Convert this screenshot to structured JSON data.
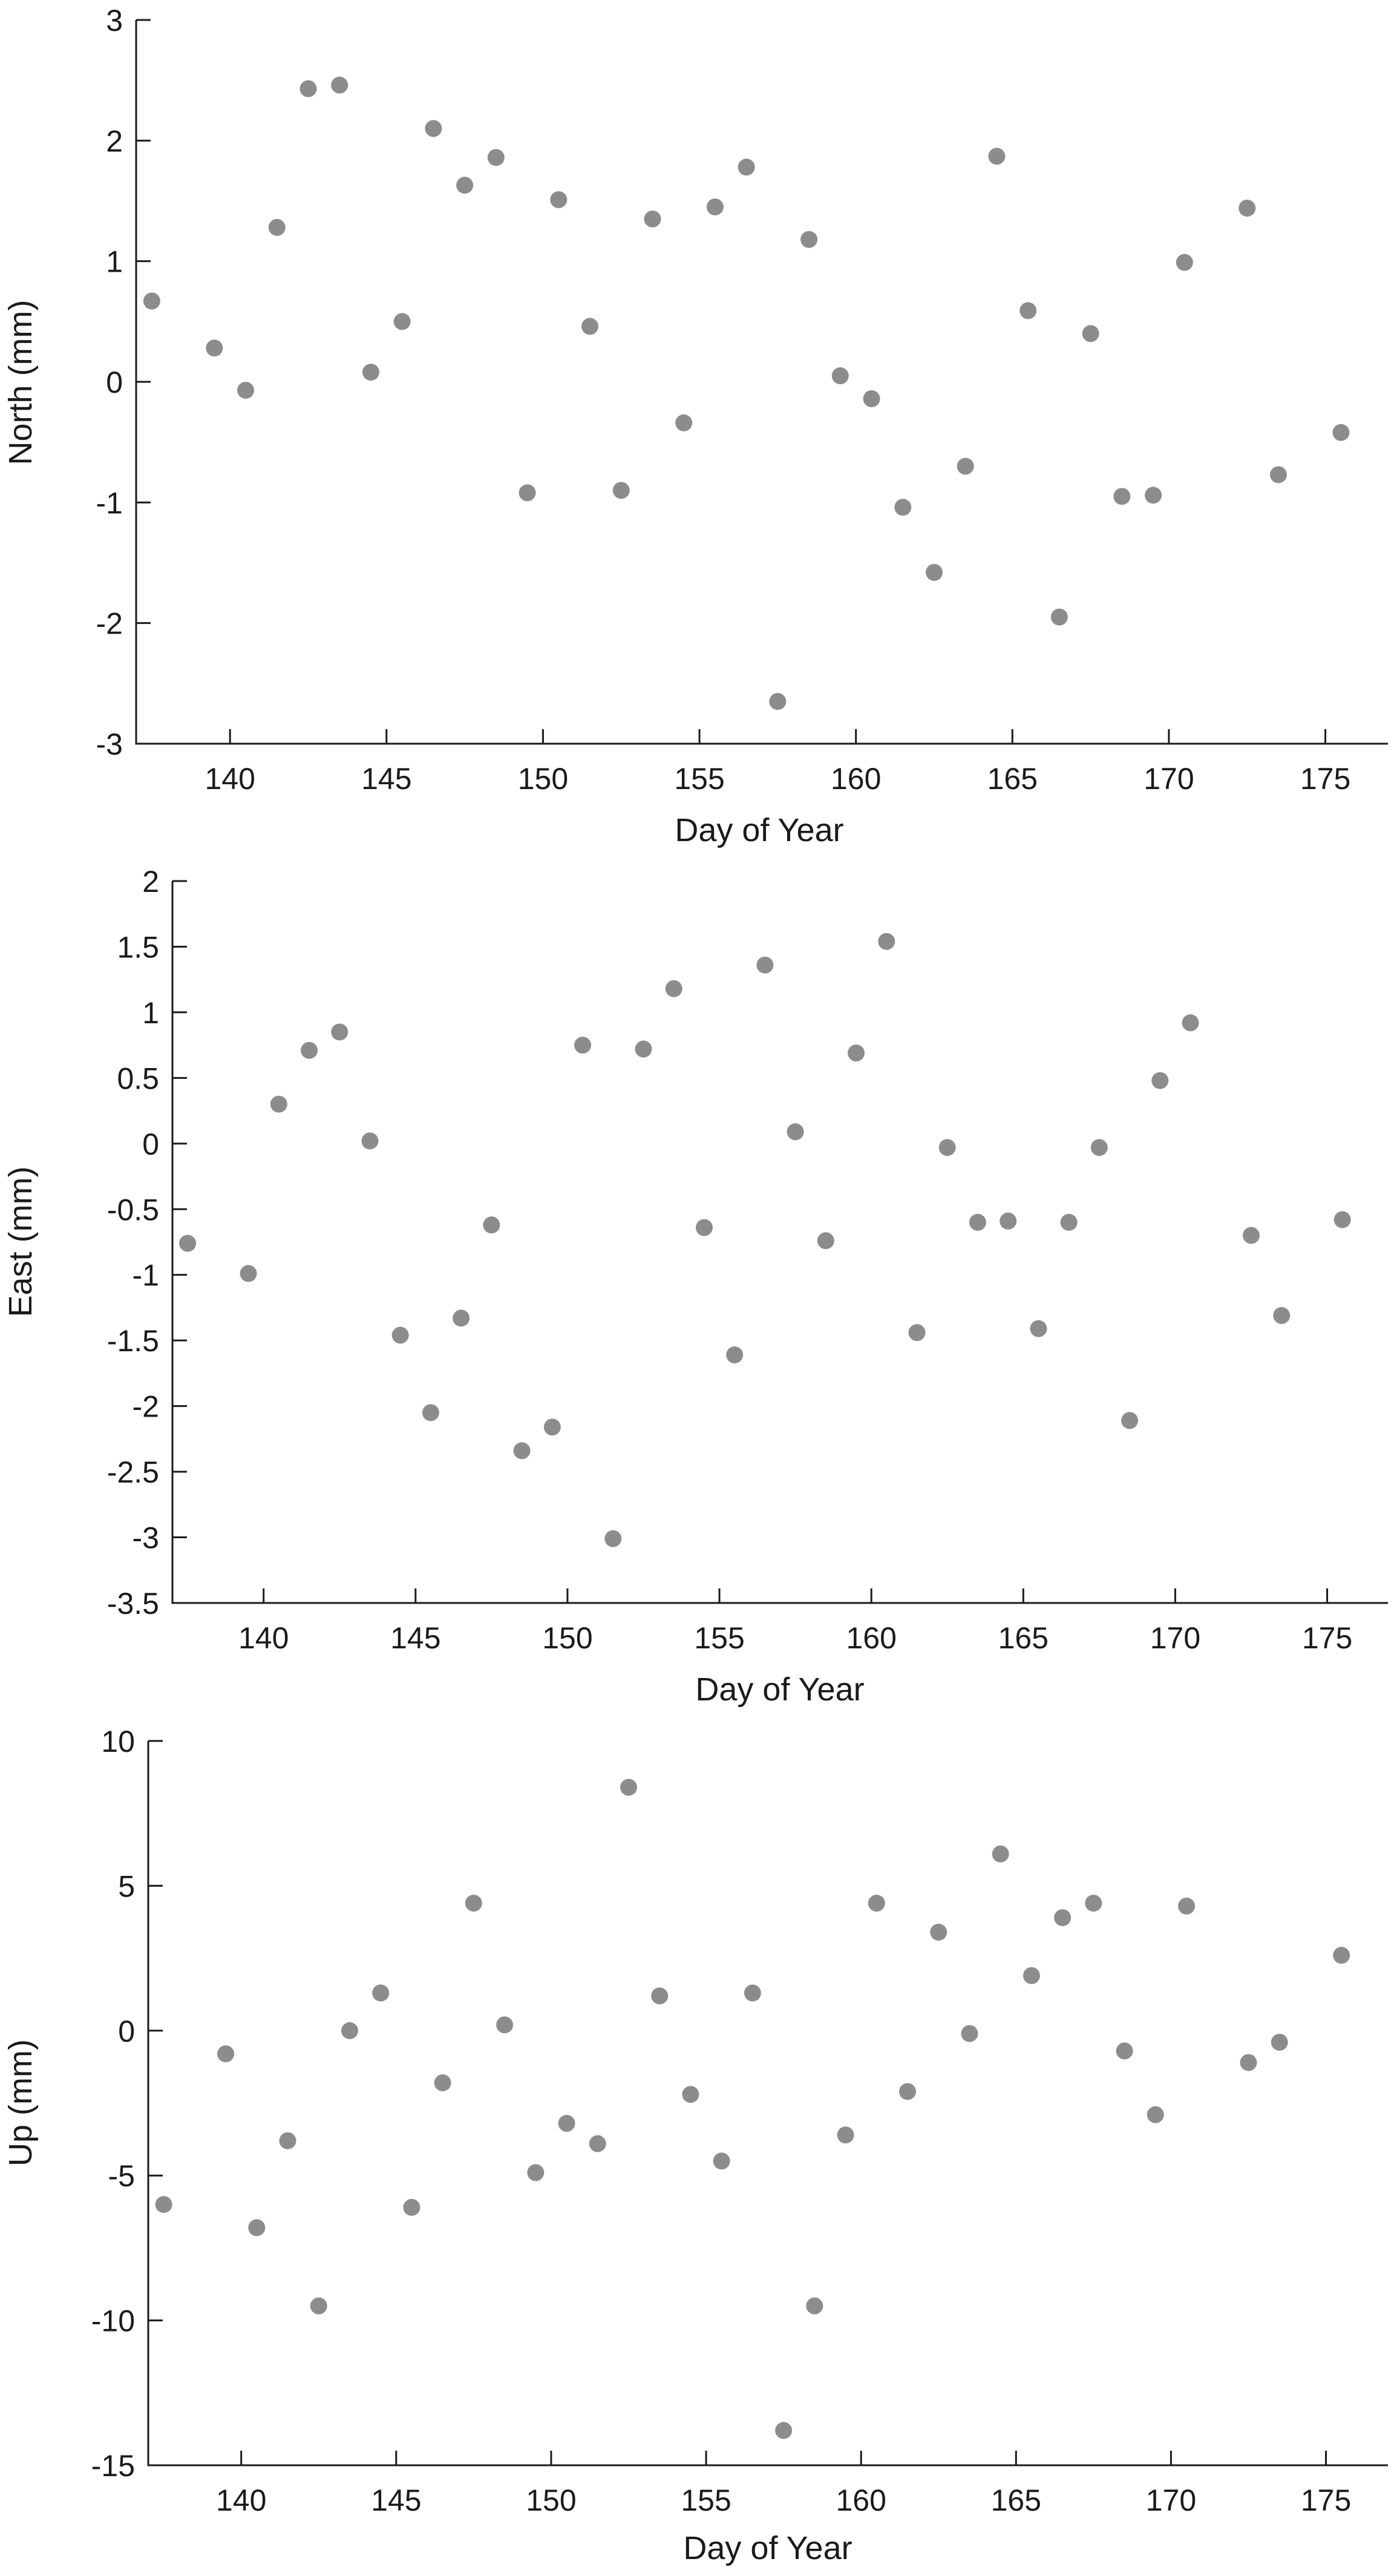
{
  "colors": {
    "point": "#8c8c8c",
    "axis": "#1a1a1a",
    "background": "#ffffff"
  },
  "chart_data": [
    {
      "type": "scatter",
      "title": "",
      "xlabel": "Day of Year",
      "ylabel": "North (mm)",
      "xlim": [
        137,
        177
      ],
      "ylim": [
        -3,
        3
      ],
      "xticks": [
        140,
        145,
        150,
        155,
        160,
        165,
        170,
        175
      ],
      "yticks": [
        -3,
        -2,
        -1,
        0,
        1,
        2,
        3
      ],
      "ytick_labels": [
        "-3",
        "-2",
        "-1",
        "0",
        "1",
        "2",
        "3"
      ],
      "grid": false,
      "legend": "none",
      "series": [
        {
          "x": [
            137.5,
            139.5,
            140.5,
            141.5,
            142.5,
            143.5,
            144.5,
            145.5,
            146.5,
            147.5,
            148.5,
            149.5,
            150.5,
            151.5,
            152.5,
            153.5,
            154.5,
            155.5,
            156.5,
            157.5,
            158.5,
            159.5,
            160.5,
            161.5,
            162.5,
            163.5,
            164.5,
            165.5,
            166.5,
            167.5,
            168.5,
            169.5,
            170.5,
            172.5,
            173.5,
            175.5
          ],
          "y": [
            0.67,
            0.28,
            -0.07,
            1.28,
            2.43,
            2.46,
            0.08,
            0.5,
            2.1,
            1.63,
            1.86,
            -0.92,
            1.51,
            0.46,
            -0.9,
            1.35,
            -0.34,
            1.45,
            1.78,
            -2.65,
            1.18,
            0.05,
            -0.14,
            -1.04,
            -1.58,
            -0.7,
            1.87,
            0.59,
            -1.95,
            0.4,
            -0.95,
            -0.94,
            0.99,
            1.44,
            -0.77,
            -0.42
          ]
        }
      ]
    },
    {
      "type": "scatter",
      "title": "",
      "xlabel": "Day of Year",
      "ylabel": "East (mm)",
      "xlim": [
        137,
        177
      ],
      "ylim": [
        -3.5,
        2
      ],
      "xticks": [
        140,
        145,
        150,
        155,
        160,
        165,
        170,
        175
      ],
      "yticks": [
        -3.5,
        -3,
        -2.5,
        -2,
        -1.5,
        -1,
        -0.5,
        0,
        0.5,
        1,
        1.5,
        2
      ],
      "ytick_labels": [
        "-3.5",
        "-3",
        "-2.5",
        "-2",
        "-1.5",
        "-1",
        "-0.5",
        "0",
        "0.5",
        "1",
        "1.5",
        "2"
      ],
      "grid": false,
      "legend": "none",
      "series": [
        {
          "x": [
            137.5,
            139.5,
            140.5,
            141.5,
            142.5,
            143.5,
            144.5,
            145.5,
            146.5,
            147.5,
            148.5,
            149.5,
            150.5,
            151.5,
            152.5,
            153.5,
            154.5,
            155.5,
            156.5,
            157.5,
            158.5,
            159.5,
            160.5,
            161.5,
            162.5,
            163.5,
            164.5,
            165.5,
            166.5,
            167.5,
            168.5,
            169.5,
            170.5,
            172.5,
            173.5,
            175.5
          ],
          "y": [
            -0.76,
            -0.99,
            0.3,
            0.71,
            0.85,
            0.02,
            -1.46,
            -2.05,
            -1.33,
            -0.62,
            -2.34,
            -2.16,
            0.75,
            -3.01,
            0.72,
            1.18,
            -0.64,
            -1.61,
            1.36,
            0.09,
            -0.74,
            0.69,
            1.54,
            -1.44,
            -0.03,
            -0.6,
            -0.59,
            -1.41,
            -0.6,
            -0.03,
            -2.11,
            0.48,
            0.92,
            -0.7,
            -1.31,
            -0.58
          ]
        }
      ]
    },
    {
      "type": "scatter",
      "title": "",
      "xlabel": "Day of Year",
      "ylabel": "Up (mm)",
      "xlim": [
        137,
        177
      ],
      "ylim": [
        -15,
        10
      ],
      "xticks": [
        140,
        145,
        150,
        155,
        160,
        165,
        170,
        175
      ],
      "yticks": [
        -15,
        -10,
        -5,
        0,
        5,
        10
      ],
      "ytick_labels": [
        "-15",
        "-10",
        "-5",
        "0",
        "5",
        "10"
      ],
      "grid": false,
      "legend": "none",
      "series": [
        {
          "x": [
            137.5,
            139.5,
            140.5,
            141.5,
            142.5,
            143.5,
            144.5,
            145.5,
            146.5,
            147.5,
            148.5,
            149.5,
            150.5,
            151.5,
            152.5,
            153.5,
            154.5,
            155.5,
            156.5,
            157.5,
            158.5,
            159.5,
            160.5,
            161.5,
            162.5,
            163.5,
            164.5,
            165.5,
            166.5,
            167.5,
            168.5,
            169.5,
            170.5,
            172.5,
            173.5,
            175.5
          ],
          "y": [
            -6.0,
            -0.8,
            -6.8,
            -3.8,
            -9.5,
            0.0,
            1.3,
            -6.1,
            -1.8,
            4.4,
            0.2,
            -4.9,
            -3.2,
            -3.9,
            8.4,
            1.2,
            -2.2,
            -4.5,
            1.3,
            -13.8,
            -9.5,
            -3.6,
            4.4,
            -2.1,
            3.4,
            -0.1,
            6.1,
            1.9,
            3.9,
            4.4,
            -0.7,
            -2.9,
            4.3,
            -1.1,
            -0.4,
            2.6
          ]
        }
      ]
    }
  ]
}
